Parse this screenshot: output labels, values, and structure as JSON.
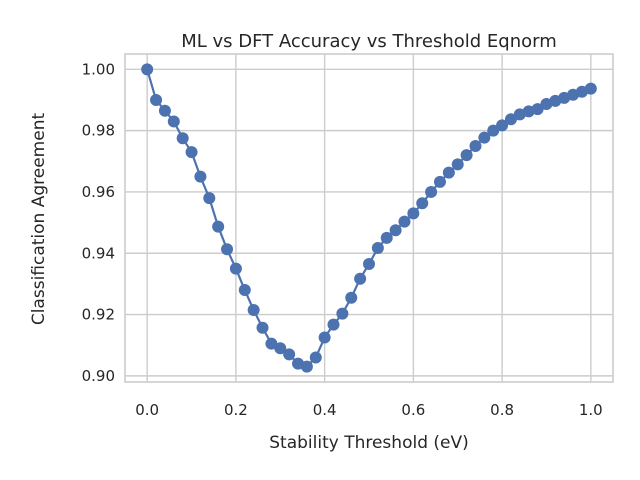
{
  "chart_data": {
    "type": "line",
    "title": "ML vs DFT Accuracy vs Threshold Eqnorm",
    "xlabel": "Stability Threshold (eV)",
    "ylabel": "Classification Agreement",
    "xlim": [
      -0.05,
      1.05
    ],
    "ylim": [
      0.898,
      1.005
    ],
    "xticks": [
      0.0,
      0.2,
      0.4,
      0.6,
      0.8,
      1.0
    ],
    "xtick_labels": [
      "0.0",
      "0.2",
      "0.4",
      "0.6",
      "0.8",
      "1.0"
    ],
    "yticks": [
      0.9,
      0.92,
      0.94,
      0.96,
      0.98,
      1.0
    ],
    "ytick_labels": [
      "0.90",
      "0.92",
      "0.94",
      "0.96",
      "0.98",
      "1.00"
    ],
    "grid": true,
    "series_color": "#4c72b0",
    "series": [
      {
        "x": [
          0.0,
          0.02,
          0.04,
          0.06,
          0.08,
          0.1,
          0.12,
          0.14,
          0.16,
          0.18,
          0.2,
          0.22,
          0.24,
          0.26,
          0.28,
          0.3,
          0.32,
          0.34,
          0.36,
          0.38,
          0.4,
          0.42,
          0.44,
          0.46,
          0.48,
          0.5,
          0.52,
          0.54,
          0.56,
          0.58,
          0.6,
          0.62,
          0.64,
          0.66,
          0.68,
          0.7,
          0.72,
          0.74,
          0.76,
          0.78,
          0.8,
          0.82,
          0.84,
          0.86,
          0.88,
          0.9,
          0.92,
          0.94,
          0.96,
          0.98,
          1.0
        ],
        "values": [
          1.0,
          0.99,
          0.9865,
          0.983,
          0.9775,
          0.973,
          0.965,
          0.958,
          0.9487,
          0.9413,
          0.935,
          0.928,
          0.9215,
          0.9157,
          0.9105,
          0.909,
          0.907,
          0.904,
          0.903,
          0.906,
          0.9125,
          0.9167,
          0.9203,
          0.9255,
          0.9317,
          0.9365,
          0.9417,
          0.945,
          0.9475,
          0.9503,
          0.953,
          0.9563,
          0.96,
          0.9633,
          0.9663,
          0.969,
          0.972,
          0.975,
          0.9777,
          0.98,
          0.9817,
          0.9837,
          0.9853,
          0.9863,
          0.987,
          0.9887,
          0.9897,
          0.9907,
          0.9917,
          0.9927,
          0.9937
        ]
      }
    ]
  }
}
